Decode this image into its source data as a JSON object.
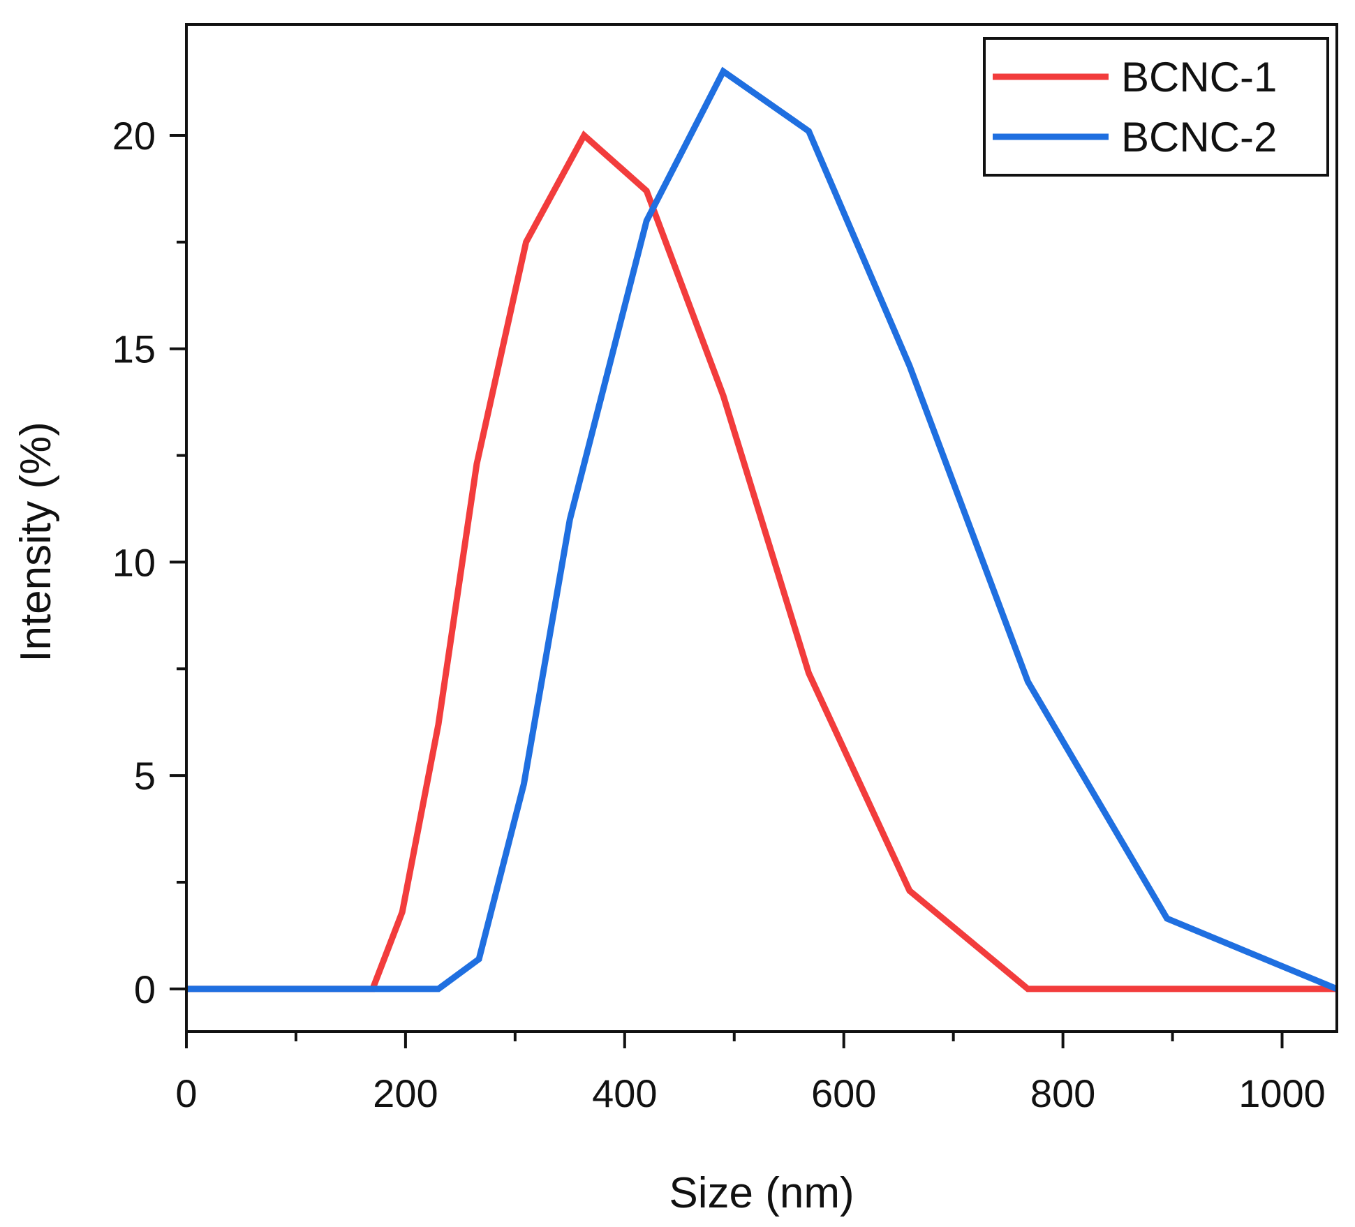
{
  "chart_data": {
    "type": "line",
    "title": "",
    "xlabel": "Size (nm)",
    "ylabel": "Intensity (%)",
    "xlim": [
      0,
      1050
    ],
    "ylim": [
      -1,
      22.6
    ],
    "xticks": [
      0,
      200,
      400,
      600,
      800,
      1000
    ],
    "xticks_minor": [
      100,
      300,
      500,
      700,
      900
    ],
    "yticks": [
      0,
      5,
      10,
      15,
      20
    ],
    "yticks_minor": [
      2.5,
      7.5,
      12.5,
      17.5
    ],
    "grid": false,
    "legend_position": "top-right",
    "series": [
      {
        "name": "BCNC-1",
        "color": "#f23c3c",
        "x": [
          0,
          170,
          197,
          230,
          265,
          310,
          363,
          420,
          490,
          568,
          660,
          768,
          1050
        ],
        "y": [
          0,
          0,
          1.8,
          6.2,
          12.3,
          17.5,
          20.0,
          18.7,
          13.9,
          7.4,
          2.3,
          0,
          0
        ]
      },
      {
        "name": "BCNC-2",
        "color": "#1f6fe0",
        "x": [
          0,
          230,
          267,
          308,
          350,
          420,
          490,
          568,
          660,
          768,
          895,
          1050
        ],
        "y": [
          0,
          0,
          0.7,
          4.8,
          11.0,
          18.0,
          21.5,
          20.1,
          14.6,
          7.2,
          1.65,
          0
        ]
      }
    ]
  }
}
